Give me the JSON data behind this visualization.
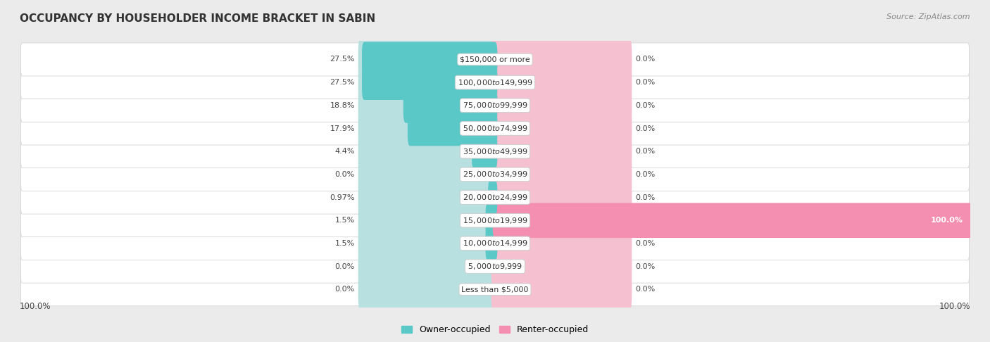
{
  "title": "OCCUPANCY BY HOUSEHOLDER INCOME BRACKET IN SABIN",
  "source": "Source: ZipAtlas.com",
  "categories": [
    "Less than $5,000",
    "$5,000 to $9,999",
    "$10,000 to $14,999",
    "$15,000 to $19,999",
    "$20,000 to $24,999",
    "$25,000 to $34,999",
    "$35,000 to $49,999",
    "$50,000 to $74,999",
    "$75,000 to $99,999",
    "$100,000 to $149,999",
    "$150,000 or more"
  ],
  "owner_values": [
    0.0,
    0.0,
    1.5,
    1.5,
    0.97,
    0.0,
    4.4,
    17.9,
    18.8,
    27.5,
    27.5
  ],
  "renter_values": [
    0.0,
    0.0,
    0.0,
    100.0,
    0.0,
    0.0,
    0.0,
    0.0,
    0.0,
    0.0,
    0.0
  ],
  "owner_color": "#5bc8c8",
  "renter_color": "#f48fb1",
  "owner_label": "Owner-occupied",
  "renter_label": "Renter-occupied",
  "background_color": "#ebebeb",
  "row_bg_color": "white",
  "bar_bg_owner": "#b8e0e0",
  "bar_bg_renter": "#f5c0d0",
  "title_fontsize": 11,
  "label_fontsize": 8,
  "source_fontsize": 8,
  "axis_label_left": "100.0%",
  "axis_label_right": "100.0%",
  "max_val": 100.0,
  "bg_bar_width": 28.0
}
